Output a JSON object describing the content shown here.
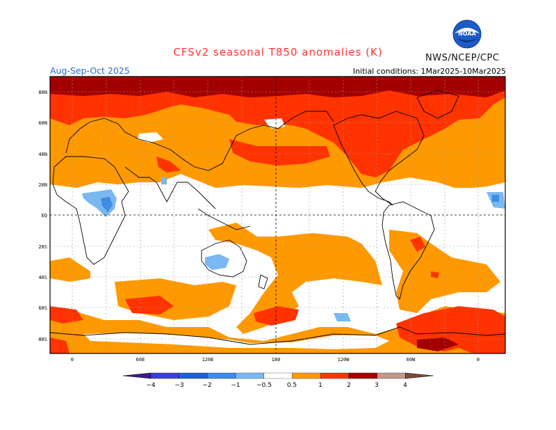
{
  "header": {
    "title": "CFSv2 seasonal T850 anomalies (K)",
    "organization": "NWS/NCEP/CPC",
    "season": "Aug-Sep-Oct 2025",
    "initial_conditions": "Initial conditions: 1Mar2025-10Mar2025",
    "logo_text": "NOAA"
  },
  "axes": {
    "lat_labels": [
      "80N",
      "60N",
      "40N",
      "20N",
      "EQ",
      "20S",
      "40S",
      "60S",
      "80S"
    ],
    "lon_labels": [
      "0",
      "60E",
      "120E",
      "180",
      "120W",
      "60W",
      "0"
    ]
  },
  "colorbar": {
    "labels": [
      "−4",
      "−3",
      "−2",
      "−1",
      "−0.5",
      "0.5",
      "1",
      "2",
      "3",
      "4"
    ],
    "colors": [
      "#3d1c8c",
      "#3b3fd6",
      "#1f62cc",
      "#3b8de6",
      "#7ab8f2",
      "#ffffff",
      "#ff9900",
      "#ff3300",
      "#a30000",
      "#c4998a",
      "#7a4a3a"
    ]
  },
  "palette": {
    "orange": "#ff9900",
    "red": "#ff3300",
    "darkred": "#a30000",
    "lightblue": "#7ab8f2",
    "blue": "#3b8de6"
  }
}
